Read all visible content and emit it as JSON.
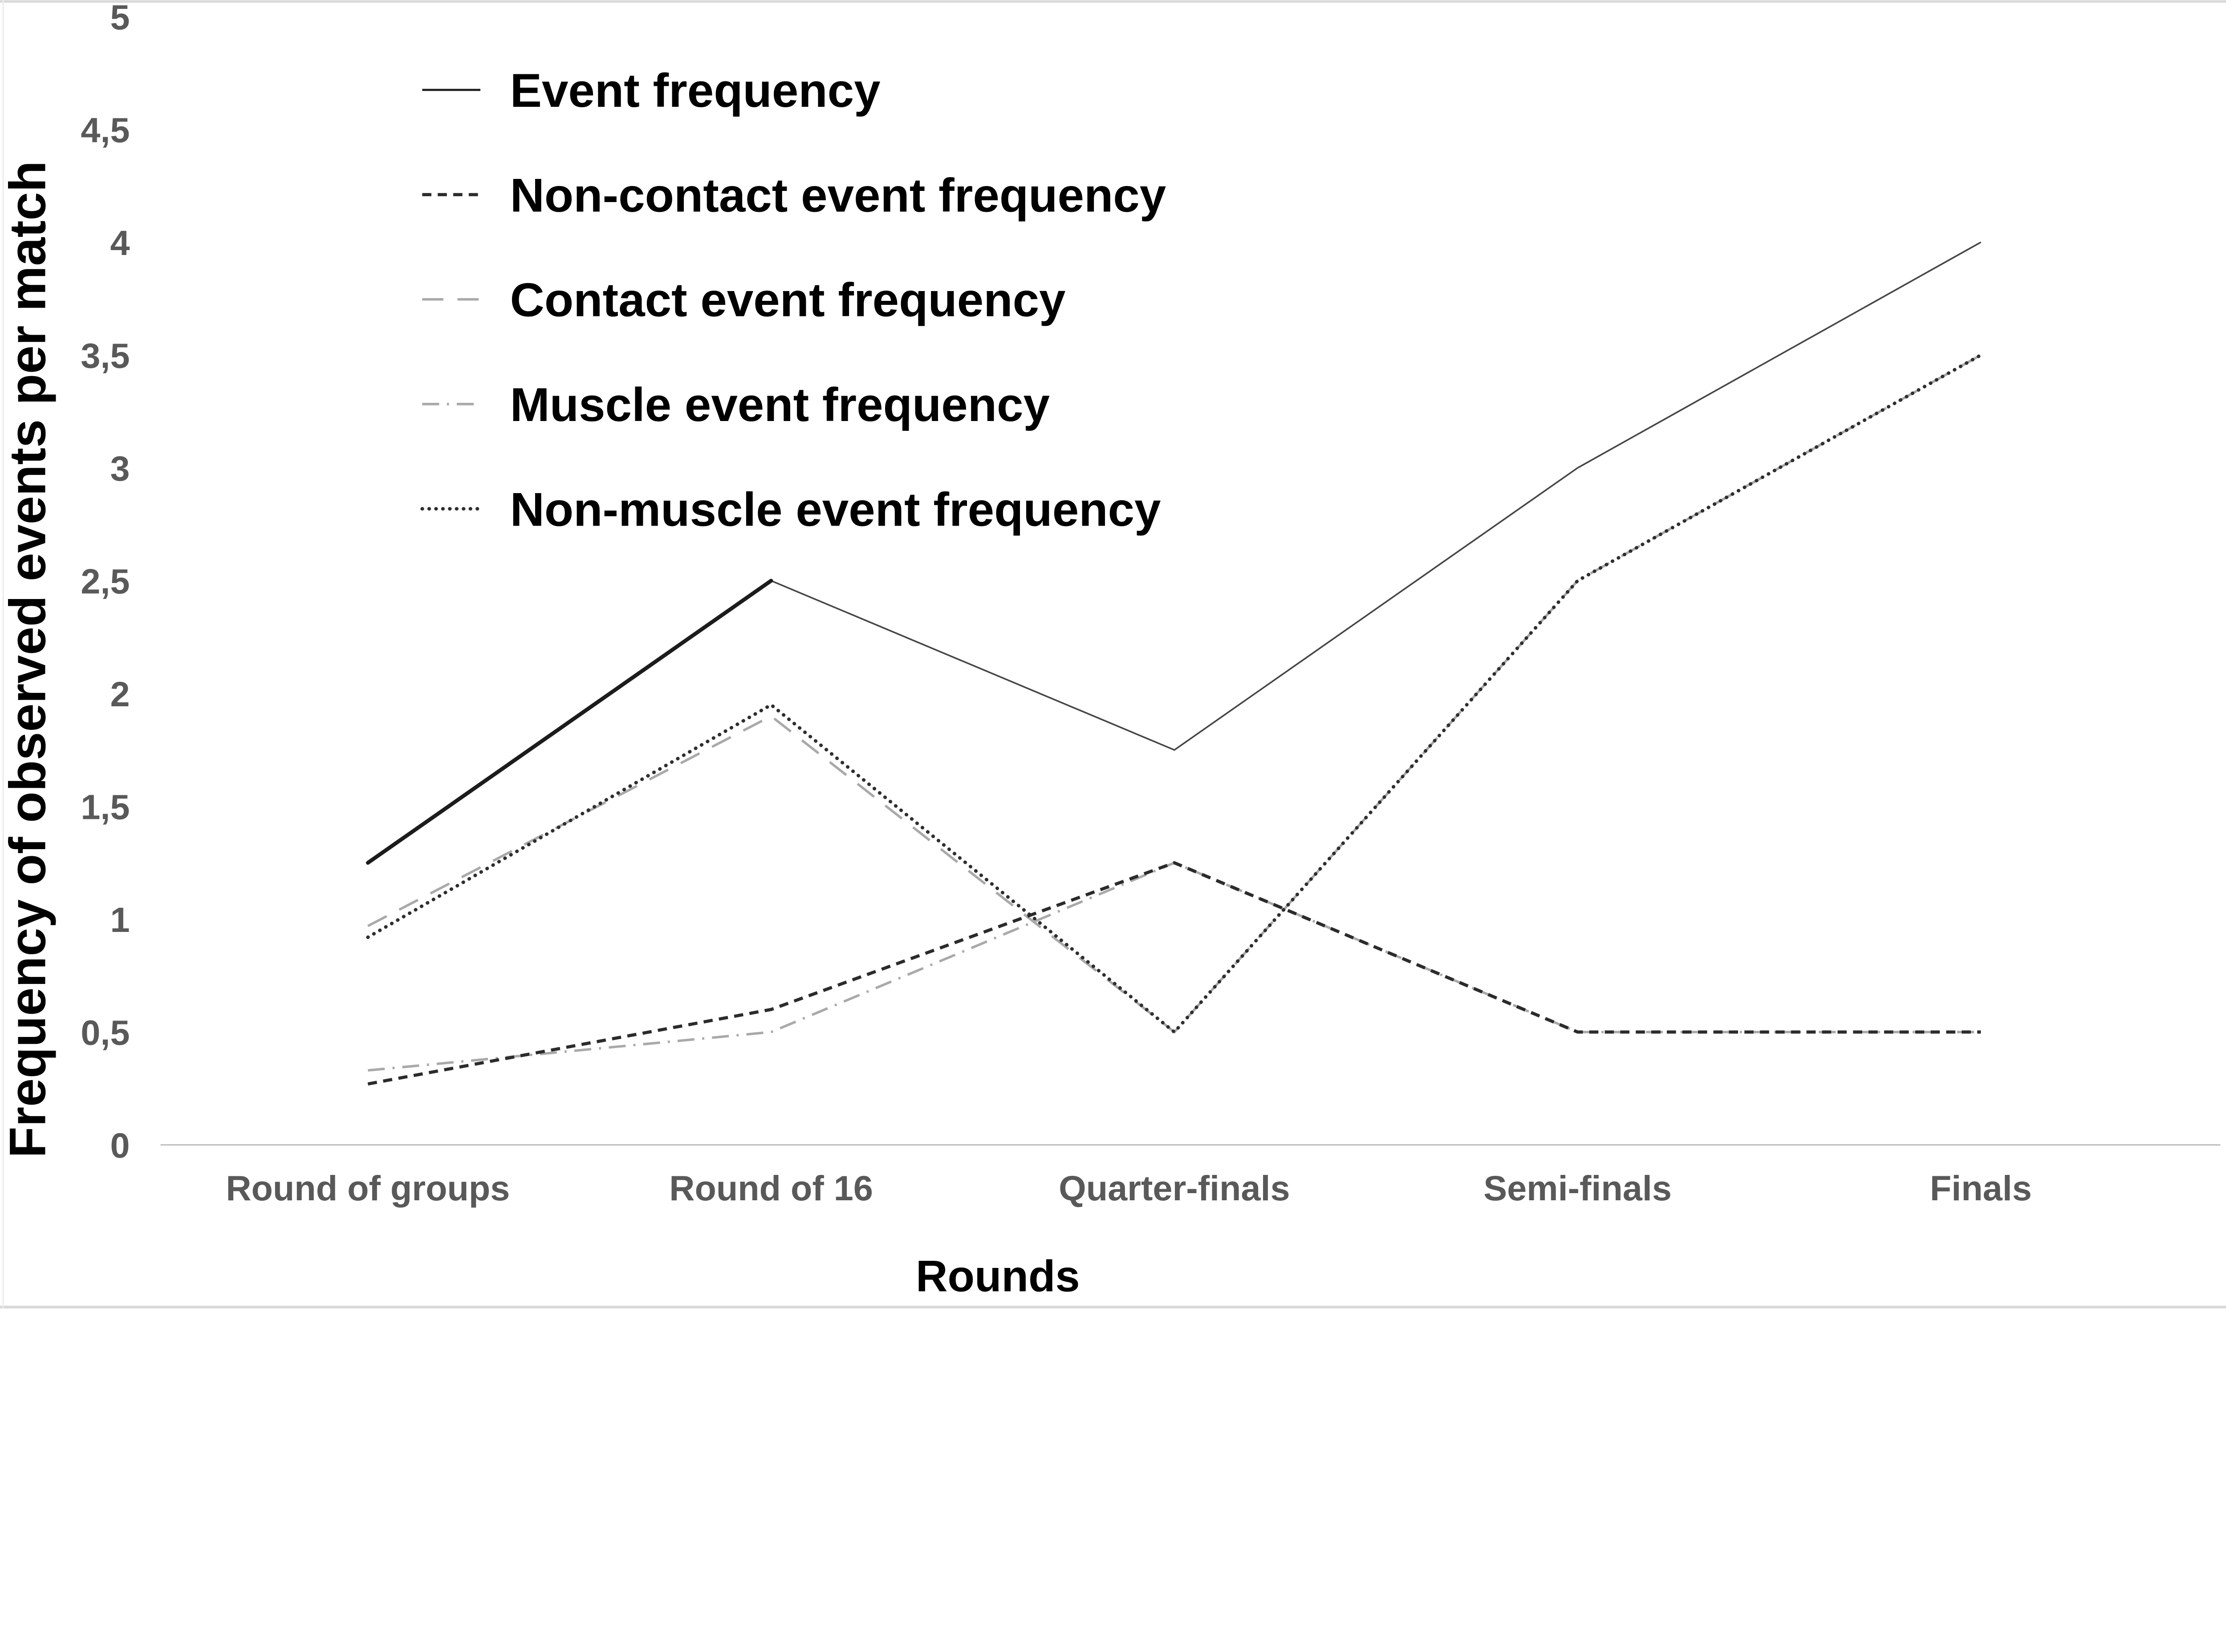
{
  "figure": {
    "background": "#ffffff",
    "border_top_color": "#d9d9d9",
    "border_bottom_color": "#d9d9d9",
    "border_left_color": "#ececec",
    "axis_line_color": "#bfbfbf",
    "tick_label_color": "#595959",
    "category_label_color": "#595959",
    "title_text_color": "#000000",
    "legend_text_color": "#000000"
  },
  "chart_data": {
    "type": "line",
    "title": "",
    "xlabel": "Rounds",
    "ylabel": "Frequency of observed events per match",
    "categories": [
      "Round of groups",
      "Round of 16",
      "Quarter-finals",
      "Semi-finals",
      "Finals"
    ],
    "ylim": [
      0,
      5
    ],
    "ytick_step": 0.5,
    "ytick_labels": [
      "0",
      "0,5",
      "1",
      "1,5",
      "2",
      "2,5",
      "3",
      "3,5",
      "4",
      "4,5",
      "5"
    ],
    "grid": "off",
    "legend_position": "top-left-inside",
    "series": [
      {
        "name": "Event frequency",
        "values": [
          1.25,
          2.5,
          1.75,
          3.0,
          4.0
        ],
        "style": "solid",
        "color": "#454545",
        "width": 4.5,
        "z": 5,
        "emphasis": {
          "segment": [
            0,
            1
          ],
          "width": 11,
          "color": "#1c1c1c"
        }
      },
      {
        "name": "Non-contact event frequency",
        "values": [
          0.27,
          0.6,
          1.25,
          0.5,
          0.5
        ],
        "style": "dash",
        "color": "#2b2b2b",
        "width": 9,
        "z": 4
      },
      {
        "name": "Contact event frequency",
        "values": [
          0.97,
          1.9,
          0.5,
          2.5,
          3.5
        ],
        "style": "longdash",
        "color": "#a9a9a9",
        "width": 7,
        "z": 1
      },
      {
        "name": "Muscle event frequency",
        "values": [
          0.33,
          0.5,
          1.25,
          0.5,
          0.5
        ],
        "style": "dashdot",
        "color": "#a9a9a9",
        "width": 7,
        "z": 2
      },
      {
        "name": "Non-muscle event frequency",
        "values": [
          0.92,
          1.95,
          0.5,
          2.5,
          3.5
        ],
        "style": "dot",
        "color": "#2e2e2e",
        "width": 10,
        "z": 3
      }
    ]
  }
}
